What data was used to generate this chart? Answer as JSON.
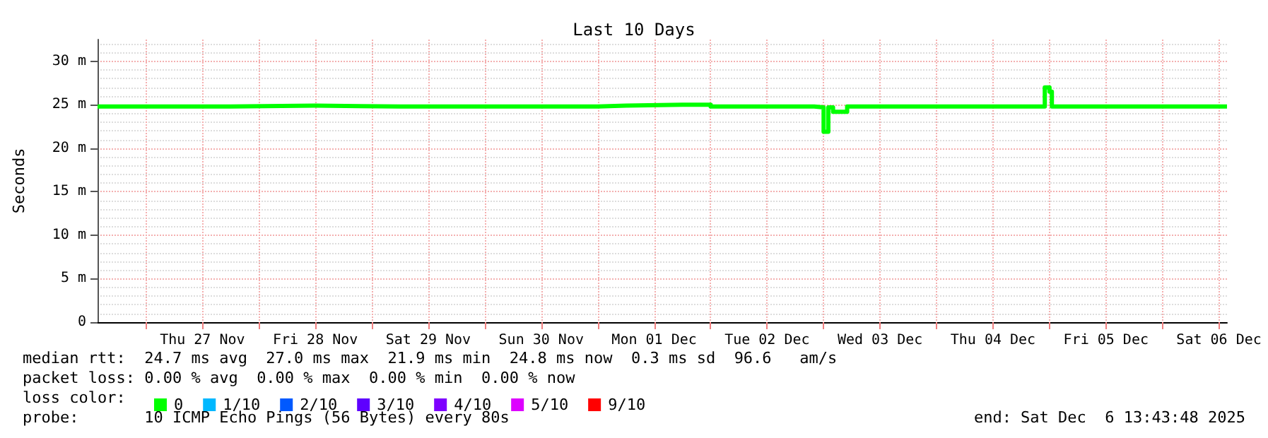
{
  "chart_data": {
    "type": "step",
    "title": "Last 10 Days",
    "ylabel": "Seconds",
    "xlim": [
      "--11-26T13:43",
      "--12-06T13:43"
    ],
    "xticks": [
      {
        "value": "--11-27T00:00",
        "label": null
      },
      {
        "value": "--11-27T12:00",
        "label": "Thu 27 Nov"
      },
      {
        "value": "--11-28T00:00",
        "label": null
      },
      {
        "value": "--11-28T12:00",
        "label": "Fri 28 Nov"
      },
      {
        "value": "--11-29T00:00",
        "label": null
      },
      {
        "value": "--11-29T12:00",
        "label": "Sat 29 Nov"
      },
      {
        "value": "--11-30T00:00",
        "label": null
      },
      {
        "value": "--11-30T12:00",
        "label": "Sun 30 Nov"
      },
      {
        "value": "--12-01T00:00",
        "label": null
      },
      {
        "value": "--12-01T12:00",
        "label": "Mon 01 Dec"
      },
      {
        "value": "--12-02T00:00",
        "label": null
      },
      {
        "value": "--12-02T12:00",
        "label": "Tue 02 Dec"
      },
      {
        "value": "--12-03T00:00",
        "label": null
      },
      {
        "value": "--12-03T12:00",
        "label": "Wed 03 Dec"
      },
      {
        "value": "--12-04T00:00",
        "label": null
      },
      {
        "value": "--12-04T12:00",
        "label": "Thu 04 Dec"
      },
      {
        "value": "--12-05T00:00",
        "label": null
      },
      {
        "value": "--12-05T12:00",
        "label": "Fri 05 Dec"
      },
      {
        "value": "--12-06T00:00",
        "label": null
      },
      {
        "value": "--12-06T12:00",
        "label": "Sat 06 Dec"
      }
    ],
    "ylim": [
      0,
      32.5
    ],
    "yticks": [
      0,
      {
        "value": 5,
        "label": "5 m"
      },
      {
        "value": 10,
        "label": "10 m"
      },
      {
        "value": 15,
        "label": "15 m"
      },
      {
        "value": 20,
        "label": "20 m"
      },
      {
        "value": 25,
        "label": "25 m"
      },
      {
        "value": 30,
        "label": "30 m"
      }
    ],
    "x": [
      "--11-26T13:43",
      "--11-27T06:00",
      "--11-27T18:00",
      "--11-28T12:00",
      "--11-29T06:00",
      "--11-29T18:00",
      "--11-30T12:00",
      "--12-01T00:00",
      "--12-01T06:00",
      "--12-01T18:00",
      "--12-02T00:00",
      "--12-02T12:00",
      "--12-02T22:00",
      "--12-03T00:00",
      "--12-03T01:00",
      "--12-03T02:00",
      "--12-03T05:00",
      "--12-03T06:00",
      "--12-03T18:00",
      "--12-04T12:00",
      "--12-04T23:00",
      "--12-05T00:00",
      "--12-05T00:30",
      "--12-05T12:00",
      "--12-06T00:00",
      "--12-06T13:43"
    ],
    "series": [
      {
        "name": "0",
        "color": "#00ff00",
        "values": [
          24.8,
          24.8,
          24.9,
          24.8,
          24.8,
          24.8,
          24.8,
          24.9,
          25.0,
          25.0,
          24.8,
          24.8,
          24.7,
          21.9,
          24.7,
          24.2,
          24.8,
          24.8,
          24.8,
          24.8,
          27.0,
          26.5,
          24.8,
          24.8,
          24.8,
          24.8
        ]
      },
      {
        "name": "1/10",
        "color": "#00b8ff",
        "values": [
          null,
          null,
          null,
          null,
          null,
          null,
          null,
          null,
          null,
          null,
          null,
          null,
          null,
          null,
          null,
          null,
          null,
          null,
          null,
          null,
          null,
          null,
          null,
          null,
          null,
          null
        ]
      },
      {
        "name": "2/10",
        "color": "#0059ff",
        "values": [
          null,
          null,
          null,
          null,
          null,
          null,
          null,
          null,
          null,
          null,
          null,
          null,
          null,
          null,
          null,
          null,
          null,
          null,
          null,
          null,
          null,
          null,
          null,
          null,
          null,
          null
        ]
      },
      {
        "name": "3/10",
        "color": "#5e00ff",
        "values": [
          null,
          null,
          null,
          null,
          null,
          null,
          null,
          null,
          null,
          null,
          null,
          null,
          null,
          null,
          null,
          null,
          null,
          null,
          null,
          null,
          null,
          null,
          null,
          null,
          null,
          null
        ]
      },
      {
        "name": "4/10",
        "color": "#7e00ff",
        "values": [
          null,
          null,
          null,
          null,
          null,
          null,
          null,
          null,
          null,
          null,
          null,
          null,
          null,
          null,
          null,
          null,
          null,
          null,
          null,
          null,
          null,
          null,
          null,
          null,
          null,
          null
        ]
      },
      {
        "name": "5/10",
        "color": "#dd00ff",
        "values": [
          null,
          null,
          null,
          null,
          null,
          null,
          null,
          null,
          null,
          null,
          null,
          null,
          null,
          null,
          null,
          null,
          null,
          null,
          null,
          null,
          null,
          null,
          null,
          null,
          null,
          null
        ]
      },
      {
        "name": "9/10",
        "color": "#ff0000",
        "values": [
          null,
          null,
          null,
          null,
          null,
          null,
          null,
          null,
          null,
          null,
          null,
          null,
          null,
          null,
          null,
          null,
          null,
          null,
          null,
          null,
          null,
          null,
          null,
          null,
          null,
          null
        ]
      }
    ],
    "annotations": [
      "median rtt:  24.7 ms avg  27.0 ms max  21.9 ms min  24.8 ms now  0.3 ms sd  96.6   am/s",
      "packet loss: 0.00 % avg  0.00 % max  0.00 % min  0.00 % now",
      "loss color:",
      "probe:       10 ICMP Echo Pings (56 Bytes) every 80s",
      "end: Sat Dec  6 13:43:48 2025"
    ],
    "grid": true,
    "legend": "bottom",
    "marker": "none",
    "line_style": "solid"
  }
}
